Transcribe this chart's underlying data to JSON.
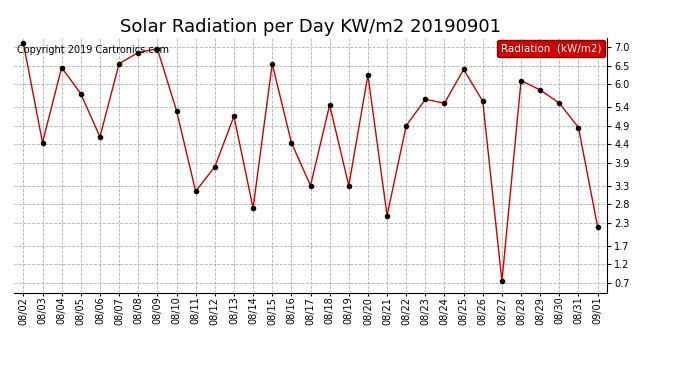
{
  "title": "Solar Radiation per Day KW/m2 20190901",
  "copyright": "Copyright 2019 Cartronics.com",
  "legend_label": "Radiation  (kW/m2)",
  "dates": [
    "08/02",
    "08/03",
    "08/04",
    "08/05",
    "08/06",
    "08/07",
    "08/08",
    "08/09",
    "08/10",
    "08/11",
    "08/12",
    "08/13",
    "08/14",
    "08/15",
    "08/16",
    "08/17",
    "08/18",
    "08/19",
    "08/20",
    "08/21",
    "08/22",
    "08/23",
    "08/24",
    "08/25",
    "08/26",
    "08/27",
    "08/28",
    "08/29",
    "08/30",
    "08/31",
    "09/01"
  ],
  "values": [
    7.1,
    4.45,
    6.45,
    5.75,
    4.6,
    6.55,
    6.85,
    6.95,
    5.3,
    3.15,
    3.8,
    5.15,
    2.7,
    6.55,
    4.45,
    3.3,
    5.45,
    3.3,
    6.25,
    2.5,
    4.9,
    5.6,
    5.5,
    6.4,
    5.55,
    0.75,
    6.1,
    5.85,
    5.5,
    4.85,
    2.2
  ],
  "line_color": "#cc0000",
  "marker_color": "#000000",
  "bg_color": "#ffffff",
  "plot_bg_color": "#ffffff",
  "grid_color": "#b0b0b0",
  "ylim": [
    0.45,
    7.25
  ],
  "yticks": [
    0.7,
    1.2,
    1.7,
    2.3,
    2.8,
    3.3,
    3.9,
    4.4,
    4.9,
    5.4,
    6.0,
    6.5,
    7.0
  ],
  "legend_bg": "#cc0000",
  "legend_text_color": "#ffffff",
  "title_fontsize": 13,
  "copyright_fontsize": 7,
  "tick_fontsize": 7,
  "legend_fontsize": 7.5
}
